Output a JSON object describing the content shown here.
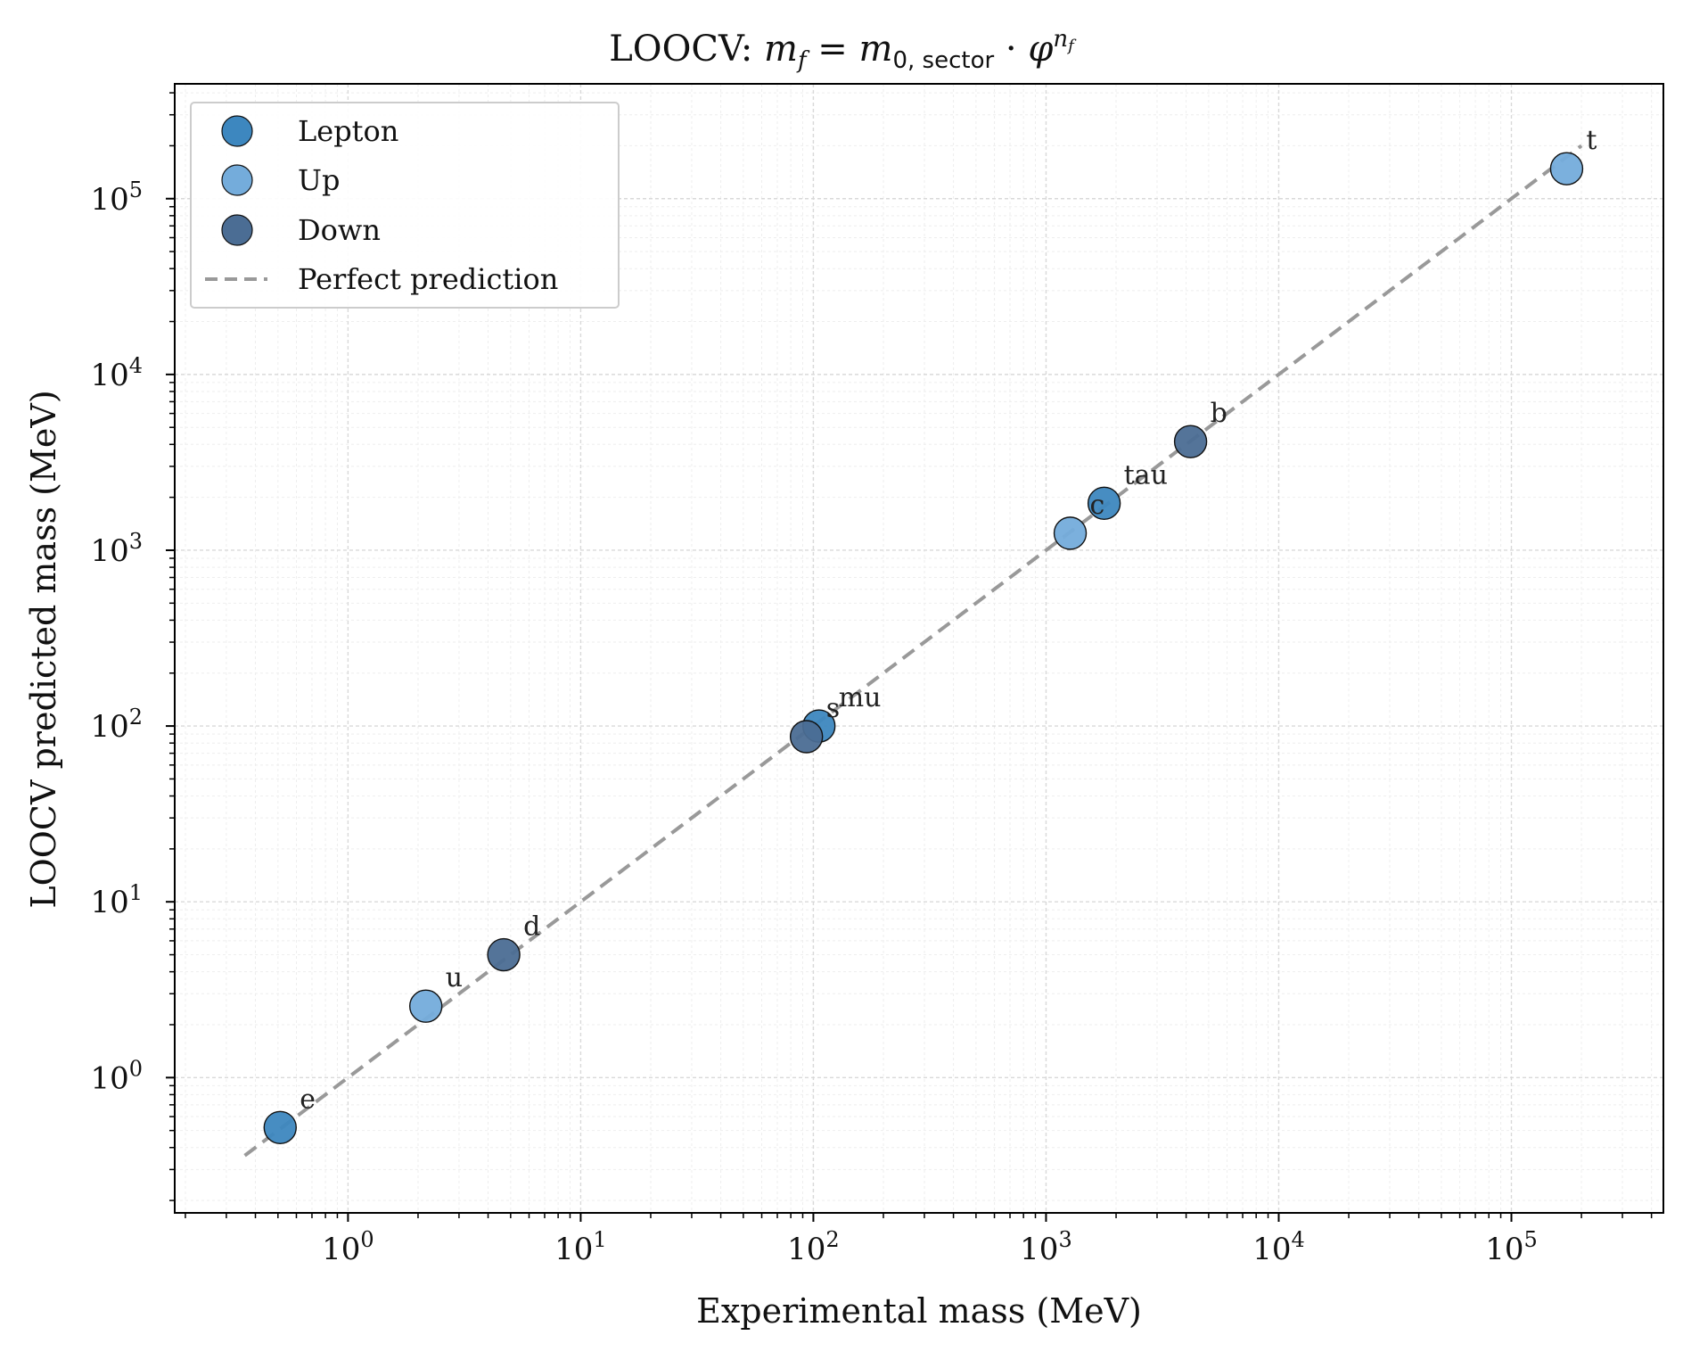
{
  "chart_data": {
    "type": "scatter",
    "title": "LOOCV: m_f = m_0,sector · φ^(n_f)",
    "title_parts": {
      "prefix": "LOOCV: ",
      "m": "m",
      "f": "f",
      "eq": " = ",
      "zero_sector": "0, sector",
      "dot": " · ",
      "phi": "φ",
      "n": "n"
    },
    "xlabel": "Experimental mass (MeV)",
    "ylabel": "LOOCV predicted mass (MeV)",
    "x_scale": "log",
    "y_scale": "log",
    "xlim": [
      0.18,
      450000
    ],
    "ylim": [
      0.17,
      450000
    ],
    "x_ticks": [
      {
        "base": "10",
        "exp": "0",
        "value": 1
      },
      {
        "base": "10",
        "exp": "1",
        "value": 10
      },
      {
        "base": "10",
        "exp": "2",
        "value": 100
      },
      {
        "base": "10",
        "exp": "3",
        "value": 1000
      },
      {
        "base": "10",
        "exp": "4",
        "value": 10000
      },
      {
        "base": "10",
        "exp": "5",
        "value": 100000
      }
    ],
    "y_ticks": [
      {
        "base": "10",
        "exp": "0",
        "value": 1
      },
      {
        "base": "10",
        "exp": "1",
        "value": 10
      },
      {
        "base": "10",
        "exp": "2",
        "value": 100
      },
      {
        "base": "10",
        "exp": "3",
        "value": 1000
      },
      {
        "base": "10",
        "exp": "4",
        "value": 10000
      },
      {
        "base": "10",
        "exp": "5",
        "value": 100000
      }
    ],
    "grid": true,
    "legend_position": "top-left",
    "series": [
      {
        "name": "Lepton",
        "color": "#3d87bf",
        "points": [
          {
            "label": "e",
            "x": 0.511,
            "y": 0.52
          },
          {
            "label": "mu",
            "x": 105.7,
            "y": 100
          },
          {
            "label": "tau",
            "x": 1777,
            "y": 1850
          }
        ]
      },
      {
        "name": "Up",
        "color": "#74acdb",
        "points": [
          {
            "label": "u",
            "x": 2.16,
            "y": 2.55
          },
          {
            "label": "c",
            "x": 1270,
            "y": 1250
          },
          {
            "label": "t",
            "x": 172700,
            "y": 148000
          }
        ]
      },
      {
        "name": "Down",
        "color": "#4b6d94",
        "points": [
          {
            "label": "d",
            "x": 4.67,
            "y": 5.0
          },
          {
            "label": "s",
            "x": 93.4,
            "y": 87
          },
          {
            "label": "b",
            "x": 4180,
            "y": 4150
          }
        ]
      }
    ],
    "reference_line": {
      "name": "Perfect prediction",
      "color": "#999999",
      "style": "dashed",
      "x": [
        0.36,
        200000
      ],
      "y": [
        0.36,
        200000
      ]
    }
  }
}
